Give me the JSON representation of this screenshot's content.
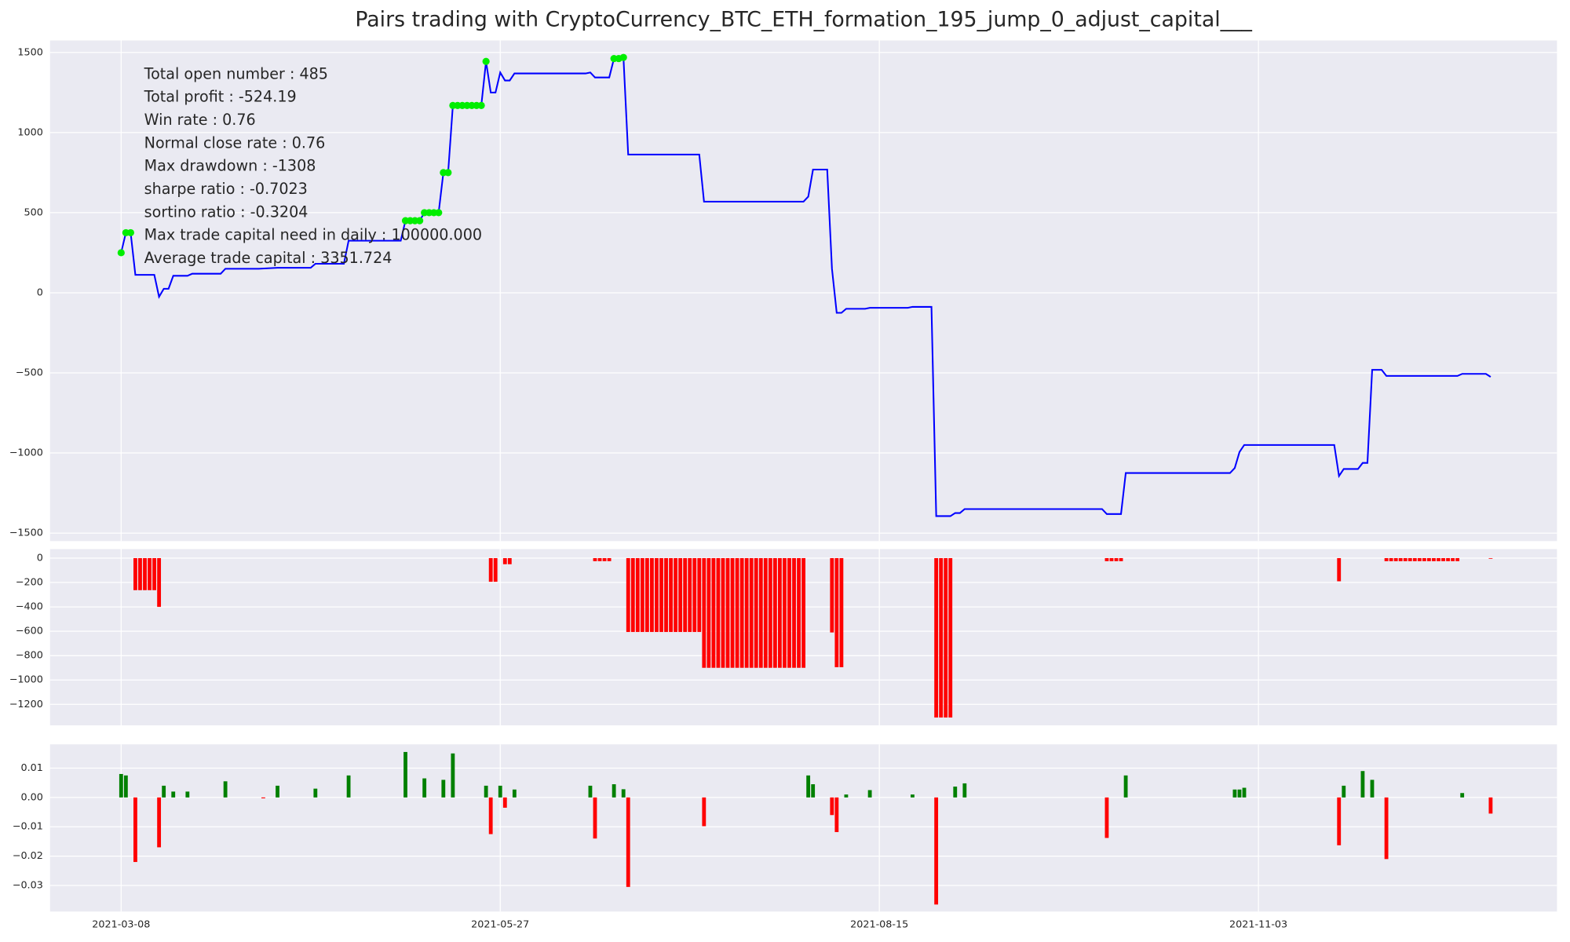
{
  "chart_data": [
    {
      "type": "line",
      "title": "Pairs trading with CryptoCurrency_BTC_ETH_formation_195_jump_0_adjust_capital___",
      "annotations": [
        "Total open number : 485",
        "Total profit : -524.19",
        "Win rate : 0.76",
        "Normal close rate : 0.76",
        "Max drawdown : -1308",
        "sharpe ratio : -0.7023",
        "sortino ratio : -0.3204",
        "Max trade capital need in daily : 100000.000",
        "Average trade capital : 3351.724"
      ],
      "series": [
        {
          "color": "#0000ff",
          "x": [
            "2021-03-08",
            "2021-03-09",
            "2021-03-10",
            "2021-03-11",
            "2021-03-15",
            "2021-03-16",
            "2021-03-17",
            "2021-03-18",
            "2021-03-19",
            "2021-03-22",
            "2021-03-23",
            "2021-03-29",
            "2021-03-30",
            "2021-04-06",
            "2021-04-10",
            "2021-04-17",
            "2021-04-18",
            "2021-04-24",
            "2021-04-25",
            "2021-05-06",
            "2021-05-07",
            "2021-05-10",
            "2021-05-11",
            "2021-05-14",
            "2021-05-15",
            "2021-05-16",
            "2021-05-17",
            "2021-05-23",
            "2021-05-24",
            "2021-05-25",
            "2021-05-26",
            "2021-05-27",
            "2021-05-28",
            "2021-05-29",
            "2021-05-30",
            "2021-06-14",
            "2021-06-15",
            "2021-06-16",
            "2021-06-19",
            "2021-06-20",
            "2021-06-22",
            "2021-06-23",
            "2021-07-08",
            "2021-07-09",
            "2021-07-30",
            "2021-07-31",
            "2021-08-01",
            "2021-08-04",
            "2021-08-05",
            "2021-08-06",
            "2021-08-07",
            "2021-08-08",
            "2021-08-12",
            "2021-08-13",
            "2021-08-21",
            "2021-08-22",
            "2021-08-26",
            "2021-08-27",
            "2021-08-30",
            "2021-08-31",
            "2021-09-01",
            "2021-09-02",
            "2021-10-01",
            "2021-10-02",
            "2021-10-05",
            "2021-10-06",
            "2021-10-28",
            "2021-10-29",
            "2021-10-30",
            "2021-10-31",
            "2021-11-19",
            "2021-11-20",
            "2021-11-21",
            "2021-11-24",
            "2021-11-25",
            "2021-11-26",
            "2021-11-27",
            "2021-11-29",
            "2021-11-30",
            "2021-12-15",
            "2021-12-16",
            "2021-12-21",
            "2021-12-22"
          ],
          "values": [
            250,
            375,
            375,
            112,
            112,
            -25,
            25,
            25,
            106,
            106,
            119,
            119,
            150,
            150,
            156,
            156,
            181,
            181,
            325,
            325,
            450,
            450,
            500,
            500,
            750,
            750,
            1169,
            1169,
            1444,
            1250,
            1250,
            1375,
            1325,
            1325,
            1369,
            1369,
            1375,
            1344,
            1344,
            1462,
            1469,
            863,
            863,
            569,
            569,
            600,
            769,
            769,
            150,
            -125,
            -125,
            -100,
            -100,
            -94,
            -94,
            -88,
            -88,
            -1394,
            -1394,
            -1375,
            -1375,
            -1350,
            -1350,
            -1381,
            -1381,
            -1125,
            -1125,
            -1094,
            -994,
            -950,
            -950,
            -1144,
            -1100,
            -1100,
            -1062,
            -1062,
            -481,
            -481,
            -519,
            -519,
            -506,
            -506,
            -525
          ]
        },
        {
          "type": "scatter",
          "color": "#00ee00",
          "x": [
            "2021-03-08",
            "2021-03-09",
            "2021-03-10",
            "2021-05-07",
            "2021-05-08",
            "2021-05-09",
            "2021-05-10",
            "2021-05-11",
            "2021-05-12",
            "2021-05-13",
            "2021-05-14",
            "2021-05-15",
            "2021-05-16",
            "2021-05-17",
            "2021-05-18",
            "2021-05-19",
            "2021-05-20",
            "2021-05-21",
            "2021-05-22",
            "2021-05-23",
            "2021-05-24",
            "2021-06-20",
            "2021-06-21",
            "2021-06-22"
          ],
          "values": [
            250,
            375,
            375,
            450,
            450,
            450,
            450,
            500,
            500,
            500,
            500,
            750,
            750,
            1169,
            1169,
            1169,
            1169,
            1169,
            1169,
            1169,
            1444,
            1462,
            1462,
            1469
          ]
        }
      ],
      "xlim": [
        "2021-02-21",
        "2022-01-05"
      ],
      "xticks": [
        "2021-03-08",
        "2021-05-27",
        "2021-08-15",
        "2021-11-03"
      ],
      "ylim": [
        -1550,
        1575
      ],
      "yticks": [
        {
          "value": -1500,
          "label": "−1500"
        },
        {
          "value": -1000,
          "label": "−1000"
        },
        {
          "value": -500,
          "label": "−500"
        },
        0,
        500,
        1000,
        1500
      ],
      "grid": true
    },
    {
      "type": "bar",
      "color": "#ff0000",
      "x": [
        "2021-03-11",
        "2021-03-12",
        "2021-03-13",
        "2021-03-14",
        "2021-03-15",
        "2021-03-16",
        "2021-05-25",
        "2021-05-26",
        "2021-05-28",
        "2021-05-29",
        "2021-06-16",
        "2021-06-17",
        "2021-06-18",
        "2021-06-19",
        "2021-06-23",
        "2021-06-24",
        "2021-06-25",
        "2021-06-26",
        "2021-06-27",
        "2021-06-28",
        "2021-06-29",
        "2021-06-30",
        "2021-07-01",
        "2021-07-02",
        "2021-07-03",
        "2021-07-04",
        "2021-07-05",
        "2021-07-06",
        "2021-07-07",
        "2021-07-08",
        "2021-07-09",
        "2021-07-10",
        "2021-07-11",
        "2021-07-12",
        "2021-07-13",
        "2021-07-14",
        "2021-07-15",
        "2021-07-16",
        "2021-07-17",
        "2021-07-18",
        "2021-07-19",
        "2021-07-20",
        "2021-07-21",
        "2021-07-22",
        "2021-07-23",
        "2021-07-24",
        "2021-07-25",
        "2021-07-26",
        "2021-07-27",
        "2021-07-28",
        "2021-07-29",
        "2021-07-30",
        "2021-08-05",
        "2021-08-06",
        "2021-08-07",
        "2021-08-27",
        "2021-08-28",
        "2021-08-29",
        "2021-08-30",
        "2021-10-02",
        "2021-10-03",
        "2021-10-04",
        "2021-10-05",
        "2021-11-20",
        "2021-11-30",
        "2021-12-01",
        "2021-12-02",
        "2021-12-03",
        "2021-12-04",
        "2021-12-05",
        "2021-12-06",
        "2021-12-07",
        "2021-12-08",
        "2021-12-09",
        "2021-12-10",
        "2021-12-11",
        "2021-12-12",
        "2021-12-13",
        "2021-12-14",
        "2021-12-15",
        "2021-12-22"
      ],
      "values": [
        -263,
        -263,
        -263,
        -263,
        -263,
        -400,
        -194,
        -194,
        -50,
        -50,
        -25,
        -25,
        -25,
        -25,
        -606,
        -606,
        -606,
        -606,
        -606,
        -606,
        -606,
        -606,
        -606,
        -606,
        -606,
        -606,
        -606,
        -606,
        -606,
        -606,
        -900,
        -900,
        -900,
        -900,
        -900,
        -900,
        -900,
        -900,
        -900,
        -900,
        -900,
        -900,
        -900,
        -900,
        -900,
        -900,
        -900,
        -900,
        -900,
        -900,
        -900,
        -900,
        -610,
        -895,
        -895,
        -1308,
        -1308,
        -1308,
        -1308,
        -25,
        -25,
        -25,
        -25,
        -190,
        -25,
        -25,
        -25,
        -25,
        -25,
        -25,
        -25,
        -25,
        -25,
        -25,
        -25,
        -25,
        -25,
        -25,
        -25,
        -25,
        -5
      ],
      "xlim": [
        "2021-02-21",
        "2022-01-05"
      ],
      "xticks": [
        "2021-03-08",
        "2021-05-27",
        "2021-08-15",
        "2021-11-03"
      ],
      "ylim": [
        -1372,
        74
      ],
      "yticks": [
        {
          "value": -1200,
          "label": "−1200"
        },
        {
          "value": -1000,
          "label": "−1000"
        },
        {
          "value": -800,
          "label": "−800"
        },
        {
          "value": -600,
          "label": "−600"
        },
        {
          "value": -400,
          "label": "−400"
        },
        {
          "value": -200,
          "label": "−200"
        },
        0
      ],
      "grid": true
    },
    {
      "type": "bar",
      "positive_color": "#008000",
      "negative_color": "#ff0000",
      "x": [
        "2021-03-08",
        "2021-03-09",
        "2021-03-11",
        "2021-03-16",
        "2021-03-17",
        "2021-03-19",
        "2021-03-22",
        "2021-03-30",
        "2021-04-07",
        "2021-04-10",
        "2021-04-18",
        "2021-04-25",
        "2021-05-07",
        "2021-05-11",
        "2021-05-15",
        "2021-05-17",
        "2021-05-24",
        "2021-05-25",
        "2021-05-27",
        "2021-05-28",
        "2021-05-30",
        "2021-06-15",
        "2021-06-16",
        "2021-06-20",
        "2021-06-22",
        "2021-06-23",
        "2021-07-09",
        "2021-07-31",
        "2021-08-01",
        "2021-08-05",
        "2021-08-06",
        "2021-08-08",
        "2021-08-13",
        "2021-08-22",
        "2021-08-27",
        "2021-08-31",
        "2021-09-02",
        "2021-10-02",
        "2021-10-06",
        "2021-10-29",
        "2021-10-30",
        "2021-10-31",
        "2021-11-20",
        "2021-11-21",
        "2021-11-25",
        "2021-11-27",
        "2021-11-30",
        "2021-12-16",
        "2021-12-22"
      ],
      "values": [
        0.008,
        0.0075,
        -0.022,
        -0.017,
        0.004,
        0.002,
        0.002,
        0.0055,
        -0.0003,
        0.004,
        0.003,
        0.0075,
        0.0155,
        0.0065,
        0.006,
        0.015,
        0.004,
        -0.0125,
        0.004,
        -0.0035,
        0.0027,
        0.004,
        -0.014,
        0.0045,
        0.0028,
        -0.0305,
        -0.0098,
        0.0075,
        0.0045,
        -0.006,
        -0.0118,
        0.001,
        0.0025,
        0.001,
        -0.0365,
        0.0037,
        0.0048,
        -0.0138,
        0.0075,
        0.0027,
        0.0027,
        0.0033,
        -0.0163,
        0.004,
        0.009,
        0.006,
        -0.021,
        0.0015,
        -0.0055
      ],
      "xlim": [
        "2021-02-21",
        "2022-01-05"
      ],
      "xticks": [
        "2021-03-08",
        "2021-05-27",
        "2021-08-15",
        "2021-11-03"
      ],
      "ylim": [
        -0.0389,
        0.0181
      ],
      "yticks": [
        {
          "value": -0.03,
          "label": "−0.03"
        },
        {
          "value": -0.02,
          "label": "−0.02"
        },
        {
          "value": -0.01,
          "label": "−0.01"
        },
        {
          "value": 0,
          "label": "0.00"
        },
        {
          "value": 0.01,
          "label": "0.01"
        }
      ],
      "grid": true
    }
  ]
}
